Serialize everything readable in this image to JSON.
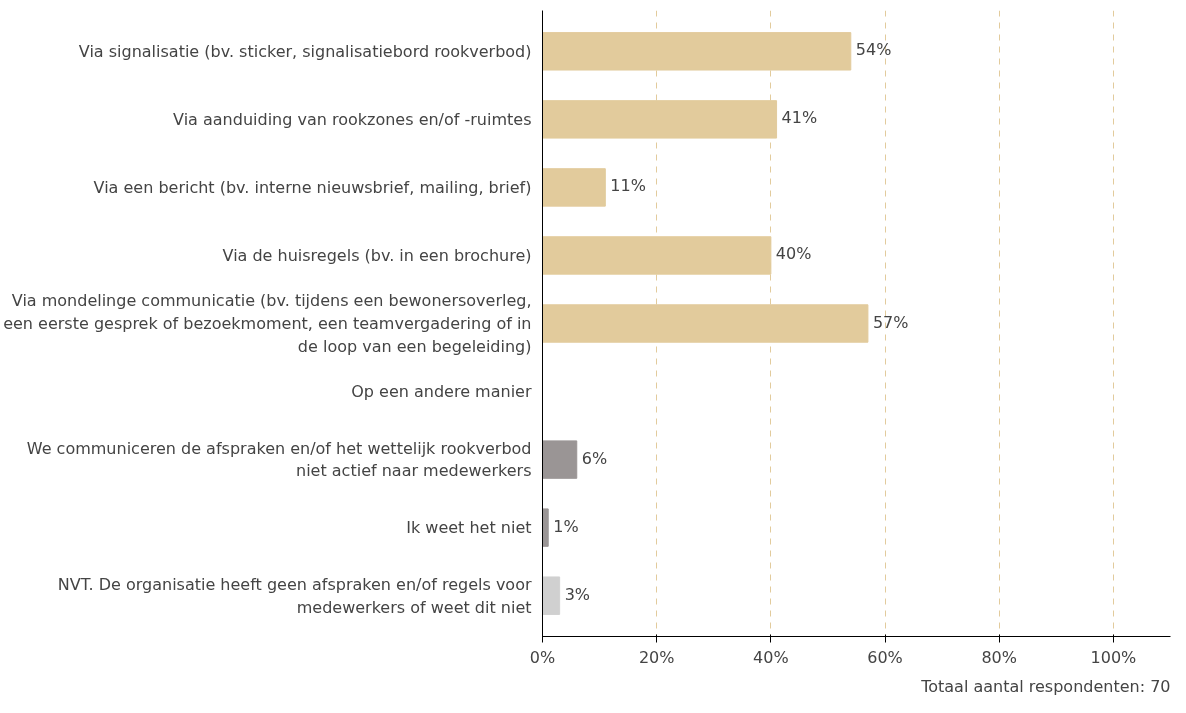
{
  "chart_data": {
    "type": "bar",
    "orientation": "horizontal",
    "categories": [
      "Via signalisatie (bv. sticker, signalisatiebord rookverbod)",
      "Via aanduiding van rookzones en/of -ruimtes",
      "Via een bericht (bv. interne nieuwsbrief, mailing, brief)",
      "Via de huisregels (bv. in een brochure)",
      "Via mondelinge communicatie (bv. tijdens een bewonersoverleg, een eerste gesprek of bezoekmoment, een teamvergadering of in de loop van een begeleiding)",
      "Op een andere manier",
      "We communiceren de afspraken en/of het wettelijk rookverbod niet actief naar medewerkers",
      "Ik weet het niet",
      "NVT. De organisatie heeft geen afspraken en/of regels voor medewerkers of weet dit niet"
    ],
    "values": [
      54,
      41,
      11,
      40,
      57,
      null,
      6,
      1,
      3
    ],
    "value_labels": [
      "54%",
      "41%",
      "11%",
      "40%",
      "57%",
      null,
      "6%",
      "1%",
      "3%"
    ],
    "colors": [
      "#e2cb9c",
      "#e2cb9c",
      "#e2cb9c",
      "#e2cb9c",
      "#e2cb9c",
      "#e2cb9c",
      "#9a9595",
      "#9a9595",
      "#d0d0d0"
    ],
    "xlim": [
      0,
      110
    ],
    "xticks": [
      {
        "value": 0,
        "label": "0%"
      },
      {
        "value": 20,
        "label": "20%"
      },
      {
        "value": 40,
        "label": "40%"
      },
      {
        "value": 60,
        "label": "60%"
      },
      {
        "value": 80,
        "label": "80%"
      },
      {
        "value": 100,
        "label": "100%"
      }
    ],
    "grid": "x",
    "annotations": [
      "Totaal aantal respondenten: 70"
    ]
  }
}
